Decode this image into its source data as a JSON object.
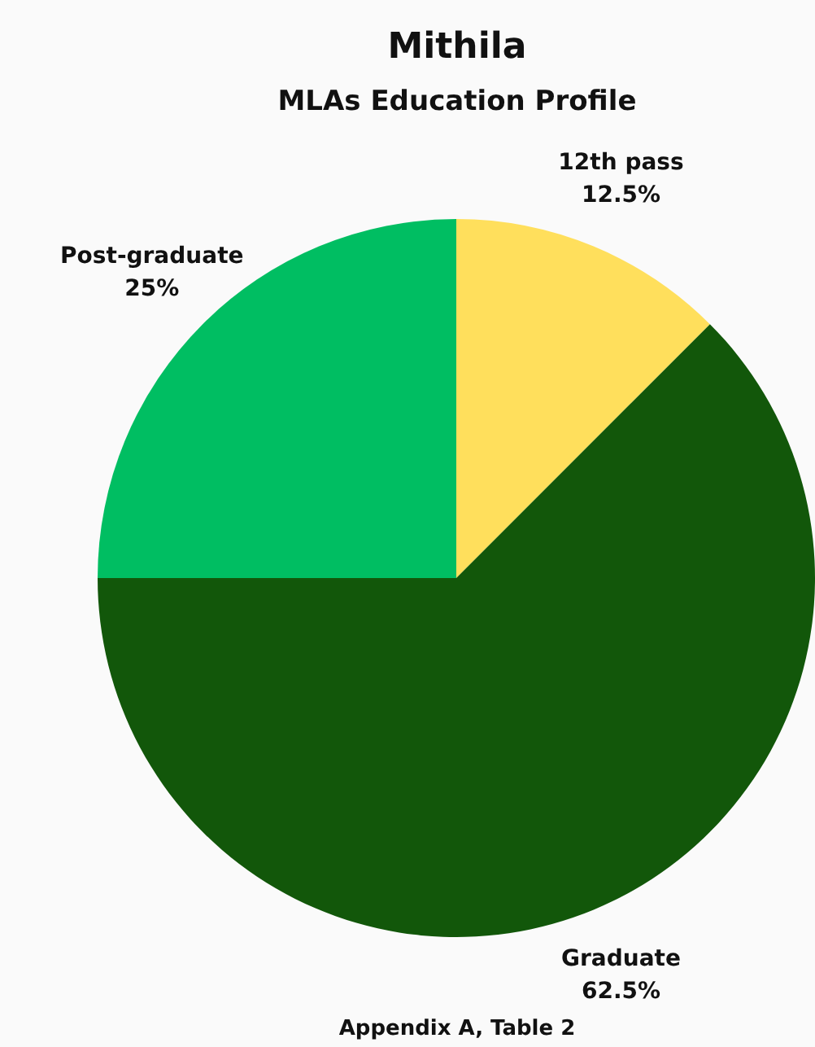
{
  "chart_data": {
    "type": "pie",
    "title": "Mithila",
    "subtitle": "MLAs Education Profile",
    "categories": [
      "12th pass",
      "Graduate",
      "Post-graduate"
    ],
    "values": [
      12.5,
      62.5,
      25
    ],
    "value_labels": [
      "12.5%",
      "62.5%",
      "25%"
    ],
    "colors": [
      "#ffdf5c",
      "#12570a",
      "#00be62"
    ],
    "annotations": [
      "Appendix A, Table 2"
    ],
    "legend": false
  }
}
